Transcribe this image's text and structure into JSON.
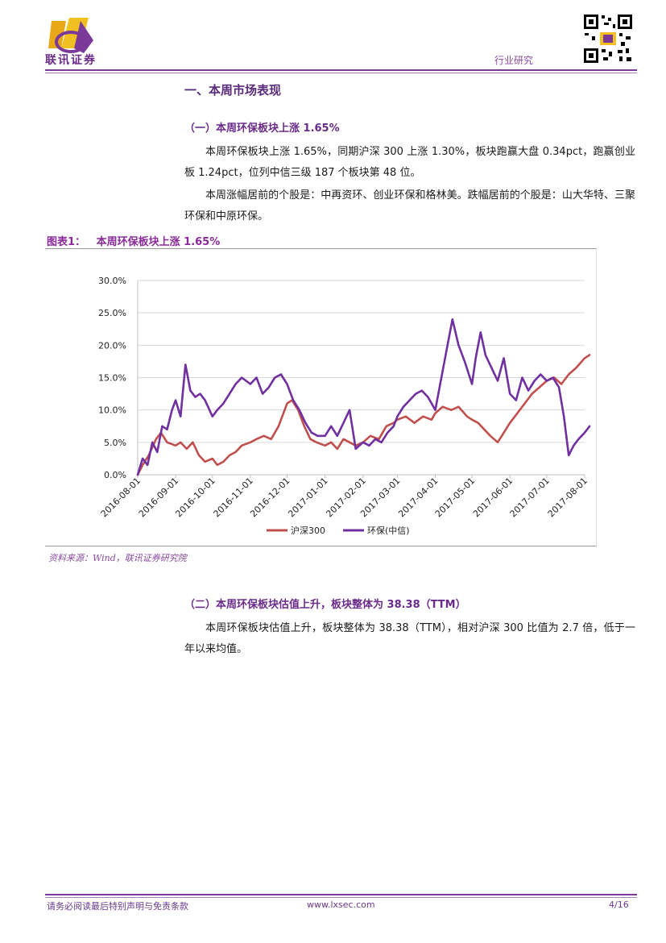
{
  "header": {
    "company": "联讯证券",
    "category": "行业研究"
  },
  "section1": {
    "title": "一、本周市场表现",
    "sub1": {
      "title": "（一）本周环保板块上涨 1.65%",
      "para1": "本周环保板块上涨 1.65%，同期沪深 300 上涨 1.30%，板块跑赢大盘 0.34pct，跑赢创业板 1.24pct，位列中信三级 187 个板块第 48 位。",
      "para2": "本周涨幅居前的个股是：中再资环、创业环保和格林美。跌幅居前的个股是：山大华特、三聚环保和中原环保。"
    },
    "figure": {
      "title": "图表1：   本周环保板块上涨 1.65%",
      "source": "资料来源：Wind，联讯证券研究院"
    },
    "sub2": {
      "title": "（二）本周环保板块估值上升，板块整体为 38.38（TTM）",
      "para1": "本周环保板块估值上升，板块整体为 38.38（TTM），相对沪深 300 比值为 2.7 倍，低于一年以来均值。"
    }
  },
  "footer": {
    "disclaimer": "请务必阅读最后特别声明与免责条款",
    "website": "www.lxsec.com",
    "page": "4/16"
  },
  "colors": {
    "brand_purple": "#6a2a8a",
    "series_hs300": "#c0504d",
    "series_env": "#7030a0"
  },
  "chart_data": {
    "type": "line",
    "title": "",
    "xlabel": "",
    "ylabel": "",
    "ylim": [
      0,
      30
    ],
    "y_ticks": [
      "0.0%",
      "5.0%",
      "10.0%",
      "15.0%",
      "20.0%",
      "25.0%",
      "30.0%"
    ],
    "x_ticks": [
      "2016-08-01",
      "2016-09-01",
      "2016-10-01",
      "2016-11-01",
      "2016-12-01",
      "2017-01-01",
      "2017-02-01",
      "2017-03-01",
      "2017-04-01",
      "2017-05-01",
      "2017-06-01",
      "2017-07-01",
      "2017-08-01"
    ],
    "legend_position": "bottom",
    "grid": "horizontal",
    "series": [
      {
        "name": "沪深300",
        "color": "#c0504d",
        "points": [
          [
            "2016-08-01",
            0.0
          ],
          [
            "2016-08-05",
            1.5
          ],
          [
            "2016-08-10",
            3.0
          ],
          [
            "2016-08-16",
            5.5
          ],
          [
            "2016-08-20",
            6.5
          ],
          [
            "2016-08-25",
            5.0
          ],
          [
            "2016-09-01",
            4.5
          ],
          [
            "2016-09-05",
            5.0
          ],
          [
            "2016-09-10",
            4.0
          ],
          [
            "2016-09-15",
            5.0
          ],
          [
            "2016-09-20",
            3.0
          ],
          [
            "2016-09-25",
            2.0
          ],
          [
            "2016-10-01",
            2.5
          ],
          [
            "2016-10-05",
            1.5
          ],
          [
            "2016-10-10",
            2.0
          ],
          [
            "2016-10-15",
            3.0
          ],
          [
            "2016-10-20",
            3.5
          ],
          [
            "2016-10-25",
            4.5
          ],
          [
            "2016-11-01",
            5.0
          ],
          [
            "2016-11-06",
            5.5
          ],
          [
            "2016-11-12",
            6.0
          ],
          [
            "2016-11-18",
            5.5
          ],
          [
            "2016-11-24",
            7.5
          ],
          [
            "2016-12-01",
            11.0
          ],
          [
            "2016-12-05",
            11.5
          ],
          [
            "2016-12-10",
            10.0
          ],
          [
            "2016-12-15",
            7.5
          ],
          [
            "2016-12-20",
            5.5
          ],
          [
            "2016-12-25",
            5.0
          ],
          [
            "2017-01-01",
            4.5
          ],
          [
            "2017-01-06",
            5.0
          ],
          [
            "2017-01-11",
            4.0
          ],
          [
            "2017-01-16",
            5.5
          ],
          [
            "2017-01-21",
            5.0
          ],
          [
            "2017-01-26",
            4.5
          ],
          [
            "2017-02-01",
            5.0
          ],
          [
            "2017-02-07",
            6.0
          ],
          [
            "2017-02-14",
            5.5
          ],
          [
            "2017-02-20",
            7.5
          ],
          [
            "2017-02-26",
            8.0
          ],
          [
            "2017-03-01",
            8.5
          ],
          [
            "2017-03-08",
            9.0
          ],
          [
            "2017-03-15",
            8.0
          ],
          [
            "2017-03-22",
            9.0
          ],
          [
            "2017-03-29",
            8.5
          ],
          [
            "2017-04-01",
            9.5
          ],
          [
            "2017-04-07",
            10.5
          ],
          [
            "2017-04-14",
            10.0
          ],
          [
            "2017-04-20",
            10.5
          ],
          [
            "2017-04-27",
            9.0
          ],
          [
            "2017-05-01",
            8.5
          ],
          [
            "2017-05-06",
            8.0
          ],
          [
            "2017-05-11",
            7.0
          ],
          [
            "2017-05-16",
            6.0
          ],
          [
            "2017-05-22",
            5.0
          ],
          [
            "2017-05-27",
            6.5
          ],
          [
            "2017-06-01",
            8.0
          ],
          [
            "2017-06-07",
            9.5
          ],
          [
            "2017-06-13",
            11.0
          ],
          [
            "2017-06-19",
            12.5
          ],
          [
            "2017-06-25",
            13.5
          ],
          [
            "2017-07-01",
            14.5
          ],
          [
            "2017-07-07",
            15.0
          ],
          [
            "2017-07-13",
            14.0
          ],
          [
            "2017-07-19",
            15.5
          ],
          [
            "2017-07-25",
            16.5
          ],
          [
            "2017-08-01",
            18.0
          ],
          [
            "2017-08-05",
            18.5
          ]
        ]
      },
      {
        "name": "环保(中信)",
        "color": "#7030a0",
        "points": [
          [
            "2016-08-01",
            0.0
          ],
          [
            "2016-08-05",
            2.5
          ],
          [
            "2016-08-09",
            1.5
          ],
          [
            "2016-08-13",
            5.0
          ],
          [
            "2016-08-17",
            3.5
          ],
          [
            "2016-08-21",
            7.5
          ],
          [
            "2016-08-25",
            7.0
          ],
          [
            "2016-08-29",
            10.0
          ],
          [
            "2016-09-01",
            11.5
          ],
          [
            "2016-09-05",
            9.0
          ],
          [
            "2016-09-09",
            17.0
          ],
          [
            "2016-09-13",
            13.0
          ],
          [
            "2016-09-17",
            12.0
          ],
          [
            "2016-09-21",
            12.5
          ],
          [
            "2016-09-25",
            11.5
          ],
          [
            "2016-10-01",
            9.0
          ],
          [
            "2016-10-05",
            10.0
          ],
          [
            "2016-10-10",
            11.0
          ],
          [
            "2016-10-15",
            12.5
          ],
          [
            "2016-10-20",
            14.0
          ],
          [
            "2016-10-25",
            15.0
          ],
          [
            "2016-11-01",
            14.0
          ],
          [
            "2016-11-06",
            15.0
          ],
          [
            "2016-11-11",
            12.5
          ],
          [
            "2016-11-16",
            13.5
          ],
          [
            "2016-11-21",
            15.0
          ],
          [
            "2016-11-26",
            15.5
          ],
          [
            "2016-12-01",
            14.0
          ],
          [
            "2016-12-06",
            11.5
          ],
          [
            "2016-12-11",
            10.0
          ],
          [
            "2016-12-16",
            8.0
          ],
          [
            "2016-12-21",
            6.5
          ],
          [
            "2016-12-26",
            6.0
          ],
          [
            "2017-01-01",
            6.0
          ],
          [
            "2017-01-06",
            7.5
          ],
          [
            "2017-01-11",
            6.0
          ],
          [
            "2017-01-16",
            8.0
          ],
          [
            "2017-01-21",
            10.0
          ],
          [
            "2017-01-26",
            4.0
          ],
          [
            "2017-02-01",
            5.0
          ],
          [
            "2017-02-06",
            4.5
          ],
          [
            "2017-02-11",
            5.5
          ],
          [
            "2017-02-16",
            5.0
          ],
          [
            "2017-02-21",
            6.5
          ],
          [
            "2017-02-26",
            7.5
          ],
          [
            "2017-03-01",
            9.0
          ],
          [
            "2017-03-06",
            10.5
          ],
          [
            "2017-03-11",
            11.5
          ],
          [
            "2017-03-16",
            12.5
          ],
          [
            "2017-03-21",
            13.0
          ],
          [
            "2017-03-26",
            12.0
          ],
          [
            "2017-04-01",
            10.0
          ],
          [
            "2017-04-06",
            15.0
          ],
          [
            "2017-04-11",
            20.0
          ],
          [
            "2017-04-15",
            24.0
          ],
          [
            "2017-04-20",
            20.0
          ],
          [
            "2017-04-25",
            17.5
          ],
          [
            "2017-05-01",
            14.0
          ],
          [
            "2017-05-04",
            18.0
          ],
          [
            "2017-05-08",
            22.0
          ],
          [
            "2017-05-12",
            18.5
          ],
          [
            "2017-05-17",
            16.5
          ],
          [
            "2017-05-22",
            14.5
          ],
          [
            "2017-05-27",
            18.0
          ],
          [
            "2017-06-01",
            12.5
          ],
          [
            "2017-06-06",
            11.5
          ],
          [
            "2017-06-11",
            15.0
          ],
          [
            "2017-06-16",
            13.0
          ],
          [
            "2017-06-21",
            14.5
          ],
          [
            "2017-06-26",
            15.5
          ],
          [
            "2017-07-01",
            14.5
          ],
          [
            "2017-07-06",
            15.0
          ],
          [
            "2017-07-11",
            13.5
          ],
          [
            "2017-07-15",
            9.0
          ],
          [
            "2017-07-19",
            3.0
          ],
          [
            "2017-07-23",
            4.5
          ],
          [
            "2017-07-27",
            5.5
          ],
          [
            "2017-08-01",
            6.5
          ],
          [
            "2017-08-05",
            7.5
          ]
        ]
      }
    ]
  }
}
